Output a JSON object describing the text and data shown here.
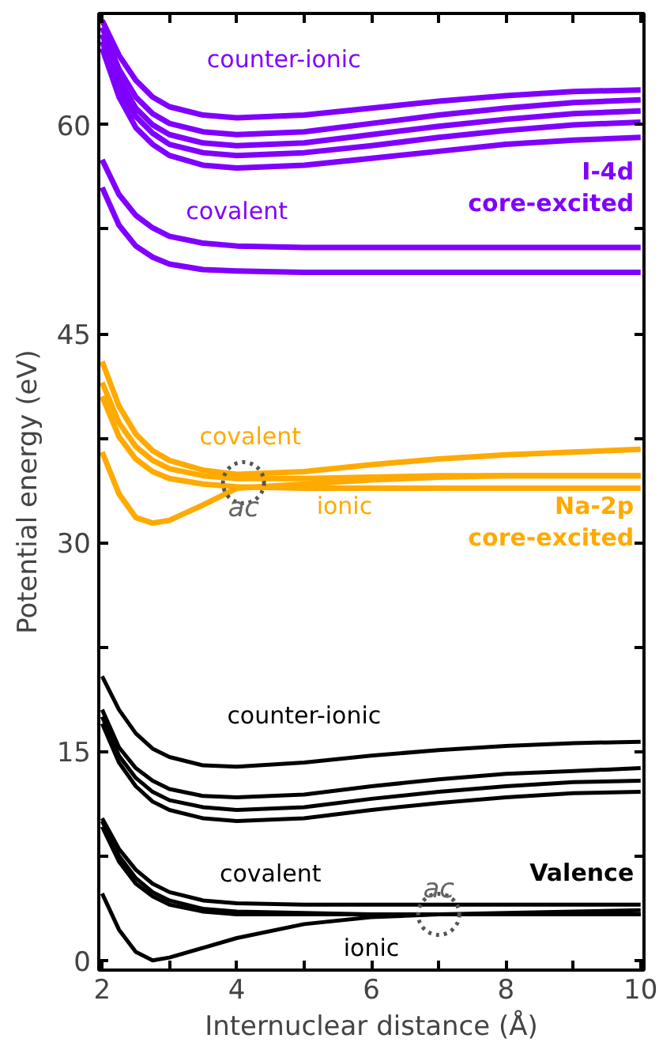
{
  "chart_data": {
    "type": "line",
    "xlabel": "Internuclear distance (Å)",
    "ylabel": "Potential energy (eV)",
    "x": [
      2,
      2.25,
      2.5,
      2.75,
      3,
      3.5,
      4,
      5,
      6,
      7,
      8,
      9,
      10
    ],
    "xlim": [
      1.95,
      10.05
    ],
    "ylim": [
      -0.7,
      68
    ],
    "xticks": [
      2,
      {
        "value": 3,
        "label": null
      },
      4,
      {
        "value": 5,
        "label": null
      },
      6,
      {
        "value": 7,
        "label": null
      },
      8,
      {
        "value": 9,
        "label": null
      },
      10
    ],
    "yticks": [
      0,
      {
        "value": 7.5,
        "label": null
      },
      15,
      {
        "value": 22.5,
        "label": null
      },
      30,
      {
        "value": 37.5,
        "label": null
      },
      45,
      {
        "value": 52.5,
        "label": null
      },
      60
    ],
    "grid": false,
    "marker": "none",
    "line_style": "solid",
    "series": [
      {
        "color": "#8000ff",
        "values": [
          67.5,
          65,
          63.2,
          62,
          61.3,
          60.7,
          60.5,
          60.7,
          61.2,
          61.7,
          62.1,
          62.4,
          62.5
        ]
      },
      {
        "color": "#8000ff",
        "values": [
          67,
          64,
          62,
          60.8,
          60.1,
          59.5,
          59.3,
          59.5,
          60.1,
          60.7,
          61.2,
          61.6,
          61.8
        ]
      },
      {
        "color": "#8000ff",
        "values": [
          66.5,
          63.3,
          61.2,
          60,
          59.3,
          58.7,
          58.5,
          58.7,
          59.3,
          59.9,
          60.4,
          60.8,
          61.0
        ]
      },
      {
        "color": "#8000ff",
        "values": [
          66,
          62.7,
          60.6,
          59.4,
          58.6,
          58,
          57.8,
          58,
          58.5,
          59.1,
          59.6,
          60,
          60.2
        ]
      },
      {
        "color": "#8000ff",
        "values": [
          65.5,
          62,
          59.8,
          58.6,
          57.8,
          57.1,
          56.9,
          57.1,
          57.6,
          58.1,
          58.6,
          58.9,
          59.1
        ]
      },
      {
        "color": "#8000ff",
        "values": [
          57.5,
          55,
          53.5,
          52.6,
          52,
          51.5,
          51.3,
          51.2,
          51.2,
          51.2,
          51.2,
          51.2,
          51.2
        ]
      },
      {
        "color": "#8000ff",
        "values": [
          55.5,
          52.8,
          51.3,
          50.5,
          50,
          49.6,
          49.5,
          49.4,
          49.4,
          49.4,
          49.4,
          49.4,
          49.4
        ]
      },
      {
        "color": "#ffaa00",
        "values": [
          43,
          39.8,
          37.8,
          36.6,
          35.9,
          35.2,
          34.9,
          35.1,
          35.6,
          36,
          36.3,
          36.5,
          36.7
        ]
      },
      {
        "color": "#ffaa00",
        "values": [
          41.5,
          38.6,
          36.9,
          35.9,
          35.3,
          34.8,
          34.6,
          34.6,
          34.7,
          34.8,
          34.8,
          34.8,
          34.8
        ]
      },
      {
        "color": "#ffaa00",
        "values": [
          40.5,
          37.6,
          36,
          35.1,
          34.6,
          34.2,
          34,
          33.9,
          33.9,
          33.9,
          33.9,
          33.9,
          33.9
        ]
      },
      {
        "color": "#ffaa00",
        "values": [
          36.5,
          33.5,
          31.8,
          31.4,
          31.6,
          32.7,
          33.9,
          34.2,
          34.5,
          34.7,
          34.8,
          34.8,
          34.8
        ]
      },
      {
        "color": "#000000",
        "values": [
          20.4,
          18,
          16.3,
          15.2,
          14.6,
          14,
          13.9,
          14.2,
          14.7,
          15.1,
          15.4,
          15.6,
          15.7
        ]
      },
      {
        "color": "#000000",
        "values": [
          18,
          15.3,
          13.8,
          12.9,
          12.3,
          11.8,
          11.7,
          11.9,
          12.5,
          13,
          13.4,
          13.6,
          13.8
        ]
      },
      {
        "color": "#000000",
        "values": [
          17.5,
          14.7,
          13.1,
          12.1,
          11.5,
          11,
          10.8,
          11,
          11.6,
          12.1,
          12.5,
          12.8,
          12.9
        ]
      },
      {
        "color": "#000000",
        "values": [
          17,
          14.2,
          12.5,
          11.4,
          10.8,
          10.2,
          10.0,
          10.2,
          10.8,
          11.3,
          11.7,
          12,
          12.1
        ]
      },
      {
        "color": "#000000",
        "values": [
          10.2,
          8,
          6.5,
          5.5,
          4.9,
          4.3,
          4.1,
          4,
          4.0,
          4.0,
          4.0,
          4.0,
          4.0
        ]
      },
      {
        "color": "#000000",
        "values": [
          10,
          7.5,
          5.9,
          4.9,
          4.3,
          3.7,
          3.5,
          3.4,
          3.3,
          3.3,
          3.3,
          3.3,
          3.3
        ]
      },
      {
        "color": "#000000",
        "values": [
          9.6,
          7.1,
          5.5,
          4.6,
          4,
          3.5,
          3.3,
          3.3,
          3.3,
          3.3,
          3.4,
          3.5,
          3.6
        ]
      },
      {
        "color": "#000000",
        "values": [
          4.8,
          2.2,
          0.6,
          0.0,
          0.2,
          0.9,
          1.6,
          2.6,
          3.1,
          3.3,
          3.3,
          3.3,
          3.3
        ]
      }
    ],
    "annotations": [
      "counter-ionic",
      "covalent",
      "I-4d\ncore-excited",
      "covalent",
      "ionic",
      {
        "text": "ac",
        "x": 4.1,
        "y": 34.3
      },
      "Na-2p\ncore-excited",
      "counter-ionic",
      "covalent",
      "ionic",
      "Valence",
      {
        "text": "ac",
        "x": 7,
        "y": 3.3
      }
    ]
  }
}
